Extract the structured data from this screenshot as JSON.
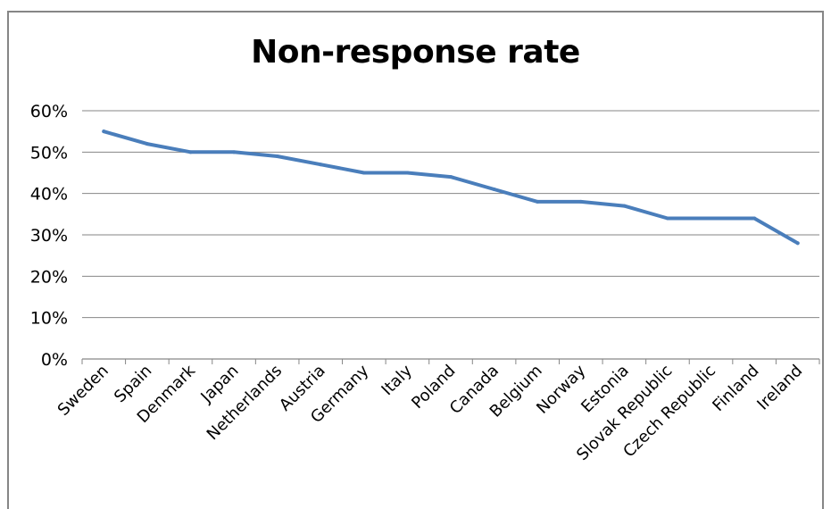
{
  "chart_data": {
    "type": "line",
    "title": "Non-response rate",
    "xlabel": "",
    "ylabel": "",
    "ylim": [
      0,
      0.6
    ],
    "yticks": [
      "0%",
      "10%",
      "20%",
      "30%",
      "40%",
      "50%",
      "60%"
    ],
    "grid": true,
    "categories": [
      "Sweden",
      "Spain",
      "Denmark",
      "Japan",
      "Netherlands",
      "Austria",
      "Germany",
      "Italy",
      "Poland",
      "Canada",
      "Belgium",
      "Norway",
      "Estonia",
      "Slovak Republic",
      "Czech Republic",
      "Finland",
      "Ireland"
    ],
    "series": [
      {
        "name": "",
        "color": "#4a7ebb",
        "values": [
          0.55,
          0.52,
          0.5,
          0.5,
          0.49,
          0.47,
          0.45,
          0.45,
          0.44,
          0.41,
          0.38,
          0.38,
          0.37,
          0.34,
          0.34,
          0.34,
          0.28
        ]
      }
    ]
  }
}
